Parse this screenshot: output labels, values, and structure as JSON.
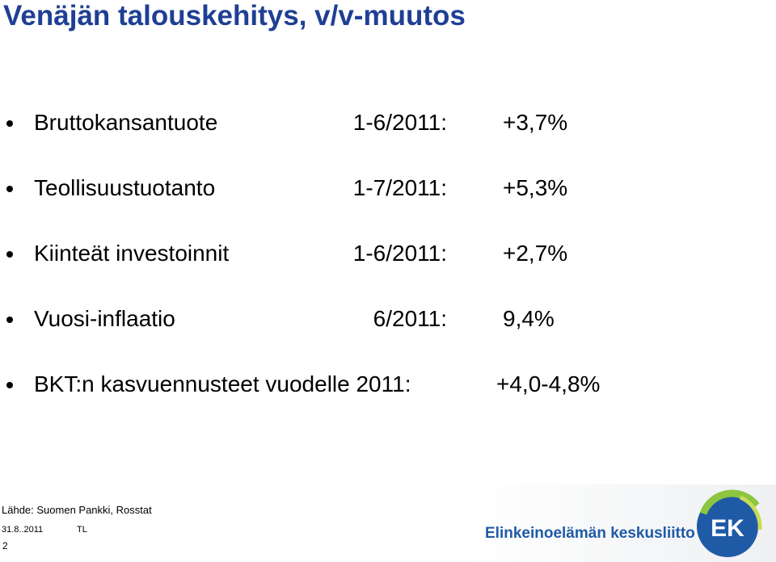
{
  "title": "Venäjän talouskehitys, v/v-muutos",
  "items": [
    {
      "label": "Bruttokansantuote",
      "period": "1-6/2011:",
      "value": "+3,7%"
    },
    {
      "label": "Teollisuustuotanto",
      "period": "1-7/2011:",
      "value": "+5,3%"
    },
    {
      "label": "Kiinteät investoinnit",
      "period": "1-6/2011:",
      "value": "+2,7%"
    },
    {
      "label": "Vuosi-inflaatio",
      "period": "6/2011:",
      "value": "9,4%"
    },
    {
      "label": "BKT:n kasvuennusteet vuodelle 2011:",
      "value": "+4,0-4,8%"
    }
  ],
  "footer": {
    "source": "Lähde: Suomen Pankki, Rosstat",
    "date": "31.8..2011",
    "author": "TL",
    "page": "2"
  },
  "logo": {
    "name": "Elinkeinoelämän keskusliitto",
    "mark": "EK"
  }
}
